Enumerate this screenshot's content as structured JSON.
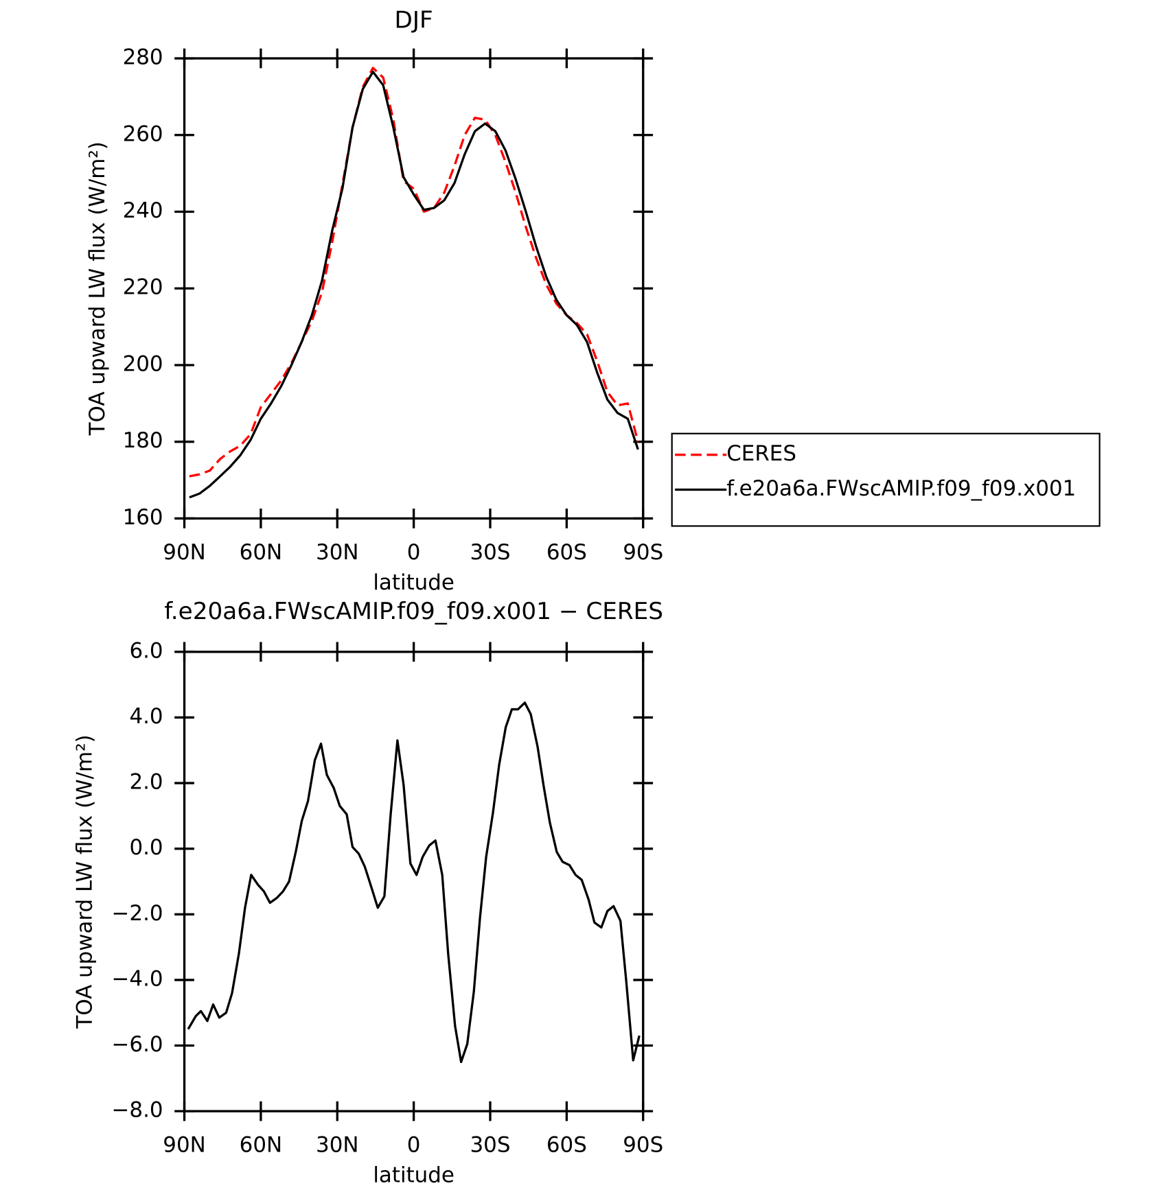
{
  "chart_data": [
    {
      "type": "line",
      "title": "DJF",
      "xlabel": "latitude",
      "ylabel": "TOA upward LW flux (W/m²)",
      "x": [
        88,
        84,
        80,
        76,
        72,
        68,
        64,
        60,
        56,
        52,
        48,
        44,
        40,
        36,
        32,
        28,
        24,
        20,
        16,
        12,
        8,
        4,
        0,
        -4,
        -8,
        -12,
        -16,
        -20,
        -24,
        -28,
        -32,
        -36,
        -40,
        -44,
        -48,
        -52,
        -56,
        -60,
        -64,
        -68,
        -72,
        -76,
        -80,
        -84,
        -88
      ],
      "series": [
        {
          "name": "CERES",
          "color": "#ff0000",
          "style": "dashed",
          "values": [
            171,
            171.5,
            172.5,
            175.5,
            177.5,
            179,
            182,
            189,
            192.5,
            196,
            200.5,
            206,
            211.5,
            219,
            232,
            247,
            262,
            272.5,
            277.5,
            275,
            264,
            248,
            246,
            240,
            241,
            245,
            252,
            260,
            264.5,
            264,
            260,
            253,
            245,
            236,
            228,
            221,
            216,
            213,
            211,
            208,
            201,
            193,
            189.5,
            190,
            180
          ]
        },
        {
          "name": "f.e20a6a.FWscAMIP.f09_f09.x001",
          "color": "#000000",
          "style": "solid",
          "values": [
            165.5,
            166.5,
            168.5,
            171,
            173.5,
            176.5,
            180.5,
            186,
            190,
            194.5,
            200,
            206,
            213,
            222,
            235,
            246,
            262,
            272,
            276.5,
            273,
            262,
            249,
            244.5,
            240.5,
            241,
            243,
            247.5,
            255,
            261,
            263,
            261,
            256,
            248.5,
            240,
            231,
            223,
            217,
            213,
            210.5,
            206,
            198,
            191,
            187.5,
            186,
            178
          ]
        }
      ],
      "xlim": [
        90,
        -90
      ],
      "xticks": [
        {
          "value": 90,
          "label": "90N"
        },
        {
          "value": 60,
          "label": "60N"
        },
        {
          "value": 30,
          "label": "30N"
        },
        0,
        {
          "value": -30,
          "label": "30S"
        },
        {
          "value": -60,
          "label": "60S"
        },
        {
          "value": -90,
          "label": "90S"
        }
      ],
      "ylim": [
        160,
        280
      ],
      "yticks": [
        160,
        180,
        200,
        220,
        240,
        260,
        280
      ],
      "legend": "right"
    },
    {
      "type": "line",
      "title": "f.e20a6a.FWscAMIP.f09_f09.x001 − CERES",
      "xlabel": "latitude",
      "ylabel": "TOA upward LW flux (W/m²)",
      "x": [
        88.5,
        85.5,
        83.5,
        81,
        78.7,
        76.3,
        73.6,
        71.3,
        68.6,
        66.2,
        63.8,
        61.1,
        58.8,
        56.4,
        53.7,
        51.3,
        48.9,
        46.3,
        43.9,
        41.5,
        38.8,
        36.4,
        34.1,
        31.4,
        29,
        26.3,
        24,
        21.6,
        19.2,
        16.5,
        14.1,
        11.5,
        9.1,
        6.4,
        4,
        1.3,
        -1.1,
        -3.5,
        -6.1,
        -8.5,
        -11.2,
        -13.5,
        -16.2,
        -18.6,
        -21,
        -23.6,
        -26,
        -28.4,
        -31.1,
        -33.5,
        -36.1,
        -38.5,
        -40.9,
        -43.6,
        -45.9,
        -48.6,
        -51,
        -53.4,
        -56.1,
        -58.4,
        -61.1,
        -63.5,
        -65.9,
        -68.6,
        -70.9,
        -73.6,
        -76,
        -78.4,
        -81.1,
        -83.4,
        -86.1,
        -88.5
      ],
      "values": [
        -5.5,
        -5.1,
        -4.95,
        -5.25,
        -4.75,
        -5.15,
        -5,
        -4.4,
        -3.2,
        -1.8,
        -0.8,
        -1.1,
        -1.3,
        -1.65,
        -1.5,
        -1.3,
        -1,
        -0.1,
        0.85,
        1.45,
        2.7,
        3.2,
        2.25,
        1.85,
        1.3,
        1.05,
        0.05,
        -0.15,
        -0.55,
        -1.2,
        -1.8,
        -1.45,
        1,
        3.3,
        1.95,
        -0.45,
        -0.8,
        -0.25,
        0.1,
        0.25,
        -0.8,
        -3.2,
        -5.4,
        -6.5,
        -5.95,
        -4.35,
        -2.1,
        -0.25,
        1.1,
        2.55,
        3.7,
        4.25,
        4.25,
        4.45,
        4.1,
        3.1,
        1.9,
        0.8,
        -0.1,
        -0.4,
        -0.5,
        -0.8,
        -0.95,
        -1.55,
        -2.25,
        -2.4,
        -1.9,
        -1.75,
        -2.2,
        -4.05,
        -6.45,
        -5.7
      ],
      "color": "#000000",
      "xlim": [
        90,
        -90
      ],
      "xticks": [
        {
          "value": 90,
          "label": "90N"
        },
        {
          "value": 60,
          "label": "60N"
        },
        {
          "value": 30,
          "label": "30N"
        },
        0,
        {
          "value": -30,
          "label": "30S"
        },
        {
          "value": -60,
          "label": "60S"
        },
        {
          "value": -90,
          "label": "90S"
        }
      ],
      "ylim": [
        -8,
        6
      ],
      "yticks": [
        {
          "value": -8,
          "label": "−8.0"
        },
        {
          "value": -6,
          "label": "−6.0"
        },
        {
          "value": -4,
          "label": "−4.0"
        },
        {
          "value": -2,
          "label": "−2.0"
        },
        {
          "value": 0,
          "label": "0.0"
        },
        {
          "value": 2,
          "label": "2.0"
        },
        {
          "value": 4,
          "label": "4.0"
        },
        {
          "value": 6,
          "label": "6.0"
        }
      ]
    }
  ]
}
